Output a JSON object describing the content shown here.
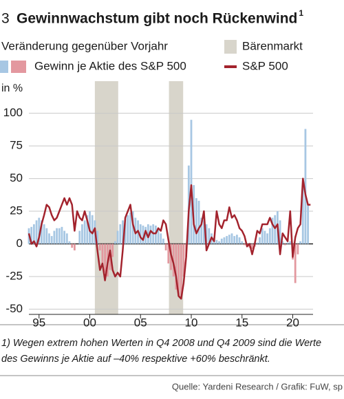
{
  "chart_data": {
    "type": "bar-line",
    "figure_number": "3",
    "title": "Gewinnwachstum gibt noch Rückenwind",
    "title_note_marker": "1",
    "subtitle": "Veränderung gegenüber Vorjahr",
    "y_unit": "in %",
    "x": [
      1994,
      1994.25,
      1994.5,
      1994.75,
      1995,
      1995.25,
      1995.5,
      1995.75,
      1996,
      1996.25,
      1996.5,
      1996.75,
      1997,
      1997.25,
      1997.5,
      1997.75,
      1998,
      1998.25,
      1998.5,
      1998.75,
      1999,
      1999.25,
      1999.5,
      1999.75,
      2000,
      2000.25,
      2000.5,
      2000.75,
      2001,
      2001.25,
      2001.5,
      2001.75,
      2002,
      2002.25,
      2002.5,
      2002.75,
      2003,
      2003.25,
      2003.5,
      2003.75,
      2004,
      2004.25,
      2004.5,
      2004.75,
      2005,
      2005.25,
      2005.5,
      2005.75,
      2006,
      2006.25,
      2006.5,
      2006.75,
      2007,
      2007.25,
      2007.5,
      2007.75,
      2008,
      2008.25,
      2008.5,
      2008.75,
      2009,
      2009.25,
      2009.5,
      2009.75,
      2010,
      2010.25,
      2010.5,
      2010.75,
      2011,
      2011.25,
      2011.5,
      2011.75,
      2012,
      2012.25,
      2012.5,
      2012.75,
      2013,
      2013.25,
      2013.5,
      2013.75,
      2014,
      2014.25,
      2014.5,
      2014.75,
      2015,
      2015.25,
      2015.5,
      2015.75,
      2016,
      2016.25,
      2016.5,
      2016.75,
      2017,
      2017.25,
      2017.5,
      2017.75,
      2018,
      2018.25,
      2018.5,
      2018.75,
      2019,
      2019.25,
      2019.5,
      2019.75,
      2020,
      2020.25,
      2020.5,
      2020.75,
      2021,
      2021.25,
      2021.5,
      2021.75
    ],
    "bear_markets": {
      "name": "Bärenmarkt",
      "color": "#d8d5cb",
      "ranges": [
        [
          2000.5,
          2002.8
        ],
        [
          2007.8,
          2009.2
        ]
      ]
    },
    "series": [
      {
        "name": "Gewinn je Aktie des S&P 500",
        "kind": "bar",
        "color": "#a7c7e3",
        "negative_color": "#e3989f",
        "values": [
          12,
          13,
          15,
          18,
          20,
          18,
          15,
          12,
          8,
          6,
          10,
          12,
          12,
          13,
          10,
          8,
          2,
          -3,
          -5,
          0,
          10,
          15,
          18,
          22,
          25,
          22,
          18,
          10,
          -5,
          -15,
          -22,
          -25,
          -20,
          -10,
          2,
          10,
          15,
          18,
          20,
          22,
          24,
          25,
          20,
          18,
          15,
          14,
          13,
          15,
          14,
          15,
          14,
          12,
          8,
          4,
          -5,
          -15,
          -20,
          -25,
          -35,
          -40,
          -40,
          -25,
          -10,
          60,
          95,
          45,
          35,
          33,
          20,
          18,
          15,
          12,
          8,
          5,
          3,
          2,
          4,
          5,
          6,
          7,
          8,
          6,
          7,
          5,
          2,
          -1,
          -2,
          -3,
          -4,
          -2,
          1,
          5,
          12,
          10,
          8,
          12,
          20,
          22,
          25,
          18,
          2,
          -1,
          1,
          2,
          -12,
          -30,
          -8,
          2,
          45,
          88,
          30,
          null
        ]
      },
      {
        "name": "S&P 500",
        "kind": "line",
        "color": "#a3232d",
        "values": [
          8,
          0,
          2,
          -2,
          5,
          15,
          22,
          30,
          28,
          22,
          18,
          20,
          25,
          30,
          35,
          30,
          35,
          30,
          10,
          25,
          20,
          18,
          25,
          18,
          10,
          8,
          12,
          -5,
          -20,
          -15,
          -28,
          -15,
          -5,
          -20,
          -25,
          -22,
          -25,
          -5,
          20,
          25,
          30,
          15,
          8,
          10,
          5,
          3,
          10,
          5,
          10,
          8,
          8,
          12,
          10,
          18,
          15,
          3,
          -8,
          -15,
          -25,
          -40,
          -42,
          -30,
          -10,
          25,
          45,
          15,
          8,
          12,
          15,
          25,
          -5,
          0,
          5,
          2,
          25,
          15,
          12,
          18,
          18,
          28,
          20,
          22,
          18,
          12,
          10,
          6,
          -2,
          0,
          -8,
          0,
          10,
          8,
          15,
          15,
          15,
          20,
          15,
          12,
          15,
          -8,
          8,
          5,
          2,
          25,
          -10,
          5,
          12,
          15,
          50,
          38,
          30,
          30
        ]
      }
    ],
    "xlim": [
      1994,
      2022
    ],
    "xticks": [
      {
        "value": 1995,
        "label": "95"
      },
      {
        "value": 2000,
        "label": "00"
      },
      {
        "value": 2005,
        "label": "05"
      },
      {
        "value": 2010,
        "label": "10"
      },
      {
        "value": 2015,
        "label": "15"
      },
      {
        "value": 2020,
        "label": "20"
      }
    ],
    "ylim": [
      -54,
      113
    ],
    "yticks": [
      100,
      75,
      50,
      25,
      0,
      -25,
      -50
    ],
    "grid": true,
    "footnote": [
      "1) Wegen extrem hohen Werten in Q4 2008 und Q4 2009 sind die Werte",
      "des Gewinns je Aktie auf –40% respektive +60% beschränkt."
    ],
    "source": "Quelle: Yardeni Research / Grafik: FuW, sp"
  }
}
